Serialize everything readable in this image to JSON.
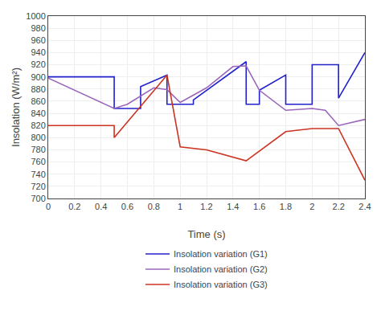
{
  "chart_data": {
    "type": "line",
    "title": "",
    "xlabel": "Time (s)",
    "ylabel": "Insolation (W/m²)",
    "xlim": [
      0,
      2.4
    ],
    "ylim": [
      700,
      1000
    ],
    "xticks": [
      0,
      0.2,
      0.4,
      0.6,
      0.8,
      1,
      1.2,
      1.4,
      1.6,
      1.8,
      2,
      2.2,
      2.4
    ],
    "yticks": [
      700,
      720,
      740,
      760,
      780,
      800,
      820,
      840,
      860,
      880,
      900,
      920,
      940,
      960,
      980,
      1000
    ],
    "grid": true,
    "legend": "bottom",
    "series": [
      {
        "name": "Insolation variation (G1)",
        "color": "#2020cc",
        "x": [
          0,
          0.5,
          0.5,
          0.7,
          0.7,
          0.9,
          0.9,
          1.1,
          1.1,
          1.5,
          1.5,
          1.6,
          1.6,
          1.8,
          1.8,
          2.0,
          2.0,
          2.2,
          2.2,
          2.4
        ],
        "values": [
          900,
          900,
          848,
          848,
          884,
          903,
          855,
          855,
          862,
          925,
          855,
          855,
          878,
          903,
          855,
          855,
          920,
          920,
          865,
          940
        ]
      },
      {
        "name": "Insolation variation (G2)",
        "color": "#9966bb",
        "x": [
          0,
          0.5,
          0.6,
          0.8,
          0.9,
          1.0,
          1.2,
          1.4,
          1.5,
          1.6,
          1.8,
          2.0,
          2.1,
          2.2,
          2.4
        ],
        "values": [
          898,
          848,
          855,
          882,
          879,
          858,
          882,
          917,
          918,
          878,
          845,
          848,
          845,
          820,
          830
        ]
      },
      {
        "name": "Insolation variation (G3)",
        "color": "#cc3322",
        "x": [
          0,
          0.5,
          0.5,
          0.9,
          1.0,
          1.2,
          1.5,
          1.8,
          2.0,
          2.1,
          2.2,
          2.4
        ],
        "values": [
          820,
          820,
          800,
          903,
          785,
          780,
          762,
          810,
          815,
          815,
          815,
          730
        ]
      }
    ]
  }
}
